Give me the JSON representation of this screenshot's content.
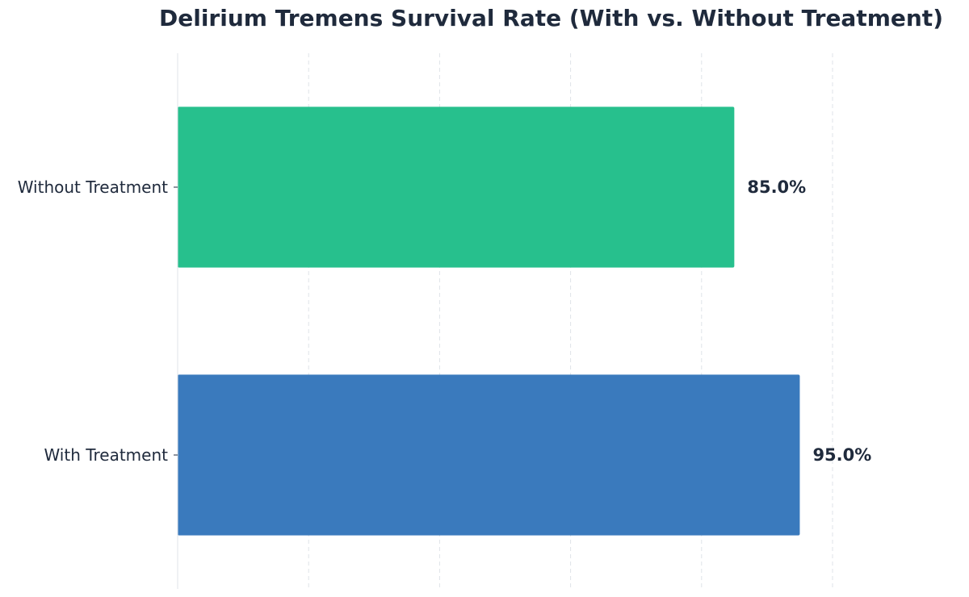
{
  "chart_data": {
    "type": "bar",
    "orientation": "horizontal",
    "title": "Delirium Tremens Survival Rate (With vs. Without Treatment)",
    "xlabel": "",
    "ylabel": "",
    "categories": [
      "With Treatment",
      "Without Treatment"
    ],
    "values": [
      95.0,
      85.0
    ],
    "value_labels": [
      "95.0%",
      "85.0%"
    ],
    "colors": [
      "#3a7abd",
      "#27c08d"
    ],
    "xlim": [
      0,
      100
    ],
    "x_grid": true,
    "legend": "none"
  }
}
